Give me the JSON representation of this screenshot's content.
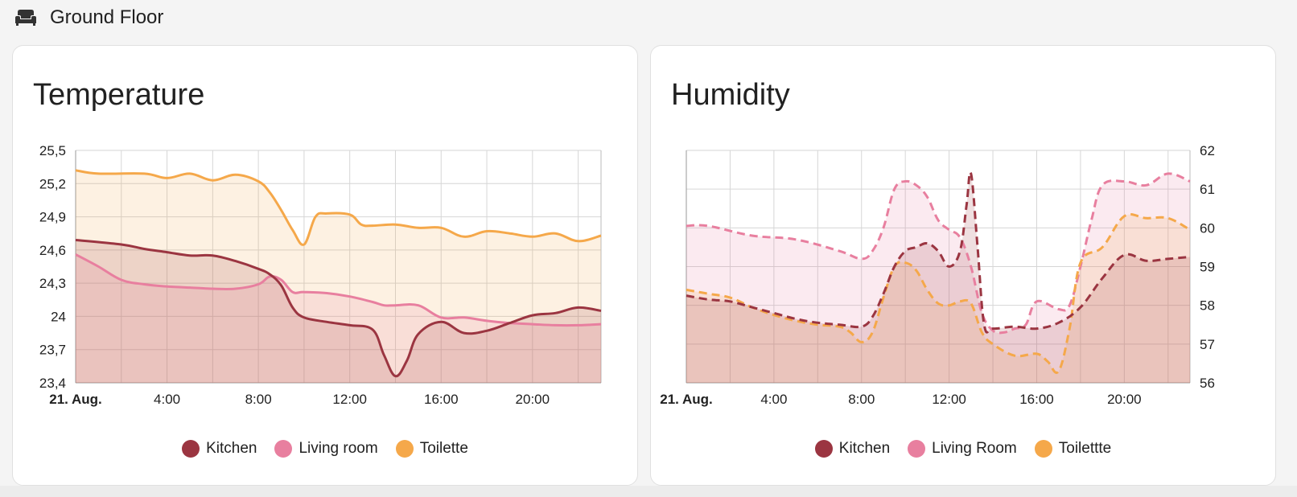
{
  "section": {
    "title": "Ground Floor",
    "icon": "sofa-icon"
  },
  "colors": {
    "kitchen": "#9b3541",
    "living": "#e87f9f",
    "toilette": "#f5a84a"
  },
  "temperature": {
    "title": "Temperature",
    "legend": [
      "Kitchen",
      "Living room",
      "Toilette"
    ]
  },
  "humidity": {
    "title": "Humidity",
    "legend": [
      "Kitchen",
      "Living Room",
      "Toilettte"
    ]
  },
  "chart_data": [
    {
      "type": "area",
      "title": "Temperature",
      "x_tick_labels": [
        "21. Aug.",
        "4:00",
        "8:00",
        "12:00",
        "16:00",
        "20:00"
      ],
      "y_tick_labels": [
        "23,4",
        "23,7",
        "24",
        "24,3",
        "24,6",
        "24,9",
        "25,2",
        "25,5"
      ],
      "ylim": [
        23.4,
        25.5
      ],
      "xlim_hours": [
        0,
        23
      ],
      "y_axis_side": "left",
      "grid": true,
      "legend_position": "bottom",
      "series": [
        {
          "name": "Toilette",
          "color": "#f5a84a",
          "dashed": false,
          "x": [
            0,
            1,
            3,
            4,
            5,
            6,
            7,
            8,
            8.5,
            9,
            9.5,
            10,
            10.5,
            11,
            12,
            12.5,
            13,
            14,
            15,
            16,
            17,
            18,
            19,
            20,
            21,
            22,
            23
          ],
          "y": [
            25.32,
            25.29,
            25.29,
            25.25,
            25.29,
            25.23,
            25.28,
            25.22,
            25.12,
            24.96,
            24.78,
            24.65,
            24.9,
            24.93,
            24.92,
            24.83,
            24.82,
            24.83,
            24.8,
            24.8,
            24.72,
            24.77,
            24.75,
            24.72,
            24.75,
            24.68,
            24.73
          ]
        },
        {
          "name": "Living room",
          "color": "#e87f9f",
          "dashed": false,
          "x": [
            0,
            1,
            2,
            3,
            4,
            5,
            6,
            7,
            8,
            8.5,
            9,
            9.5,
            10,
            11,
            12,
            13,
            13.5,
            14,
            15,
            16,
            17,
            18,
            19,
            20,
            21,
            22,
            23
          ],
          "y": [
            24.56,
            24.45,
            24.33,
            24.29,
            24.27,
            24.26,
            24.25,
            24.25,
            24.29,
            24.36,
            24.33,
            24.22,
            24.22,
            24.21,
            24.18,
            24.13,
            24.1,
            24.1,
            24.1,
            23.99,
            23.99,
            23.96,
            23.94,
            23.93,
            23.92,
            23.92,
            23.93
          ]
        },
        {
          "name": "Kitchen",
          "color": "#9b3541",
          "dashed": false,
          "x": [
            0,
            2,
            3,
            4,
            5,
            6,
            7,
            8,
            8.5,
            9,
            9.5,
            10,
            11,
            12,
            13,
            13.5,
            14,
            14.5,
            15,
            16,
            17,
            18,
            19,
            20,
            21,
            22,
            23
          ],
          "y": [
            24.69,
            24.65,
            24.61,
            24.58,
            24.55,
            24.55,
            24.5,
            24.43,
            24.38,
            24.28,
            24.08,
            23.99,
            23.95,
            23.92,
            23.88,
            23.65,
            23.46,
            23.6,
            23.84,
            23.95,
            23.85,
            23.87,
            23.94,
            24.01,
            24.03,
            24.08,
            24.05
          ]
        }
      ]
    },
    {
      "type": "area",
      "title": "Humidity",
      "x_tick_labels": [
        "21. Aug.",
        "4:00",
        "8:00",
        "12:00",
        "16:00",
        "20:00"
      ],
      "y_tick_labels": [
        "56",
        "57",
        "58",
        "59",
        "60",
        "61",
        "62"
      ],
      "ylim": [
        56,
        62
      ],
      "xlim_hours": [
        0,
        23
      ],
      "y_axis_side": "right",
      "grid": true,
      "legend_position": "bottom",
      "series": [
        {
          "name": "Living Room",
          "color": "#e87f9f",
          "dashed": true,
          "x": [
            0,
            1,
            3,
            5,
            7,
            8,
            8.5,
            9,
            9.5,
            10,
            10.5,
            11,
            11.5,
            12,
            12.5,
            13,
            13.5,
            14,
            14.5,
            15,
            15.5,
            16,
            17,
            17.5,
            18,
            18.5,
            19,
            20,
            21,
            22,
            23
          ],
          "y": [
            60.05,
            60.05,
            59.8,
            59.7,
            59.4,
            59.2,
            59.4,
            60.0,
            61.0,
            61.2,
            61.1,
            60.8,
            60.2,
            59.95,
            59.75,
            59.0,
            57.8,
            57.35,
            57.3,
            57.4,
            57.5,
            58.1,
            57.9,
            58.0,
            59.0,
            60.2,
            61.1,
            61.2,
            61.1,
            61.4,
            61.2
          ]
        },
        {
          "name": "Toilettte",
          "color": "#f5a84a",
          "dashed": true,
          "x": [
            0,
            1,
            2,
            3,
            4,
            5,
            6,
            7,
            7.5,
            8,
            8.5,
            9,
            9.5,
            10,
            10.5,
            11,
            11.5,
            12,
            12.5,
            13,
            13.5,
            14,
            15,
            16,
            16.5,
            17,
            17.5,
            18,
            19,
            20,
            21,
            22,
            23
          ],
          "y": [
            58.4,
            58.3,
            58.2,
            57.95,
            57.75,
            57.6,
            57.5,
            57.45,
            57.3,
            57.05,
            57.3,
            58.2,
            59.0,
            59.1,
            58.9,
            58.4,
            58.05,
            58.0,
            58.1,
            58.05,
            57.3,
            57.0,
            56.7,
            56.75,
            56.55,
            56.3,
            57.4,
            59.1,
            59.5,
            60.3,
            60.25,
            60.25,
            59.95
          ]
        },
        {
          "name": "Kitchen",
          "color": "#9b3541",
          "dashed": true,
          "x": [
            0,
            1,
            2,
            3,
            4,
            5,
            6,
            7,
            8,
            8.5,
            9,
            9.5,
            10,
            10.5,
            11,
            11.5,
            12,
            12.5,
            12.8,
            13,
            13.3,
            13.6,
            14,
            15,
            16,
            17,
            18,
            19,
            20,
            21,
            22,
            23
          ],
          "y": [
            58.25,
            58.15,
            58.1,
            57.95,
            57.8,
            57.65,
            57.55,
            57.5,
            57.45,
            57.7,
            58.3,
            59.0,
            59.4,
            59.5,
            59.6,
            59.4,
            59.0,
            59.4,
            60.6,
            61.4,
            59.5,
            57.5,
            57.4,
            57.45,
            57.4,
            57.55,
            57.95,
            58.7,
            59.3,
            59.15,
            59.2,
            59.25
          ]
        }
      ]
    }
  ]
}
